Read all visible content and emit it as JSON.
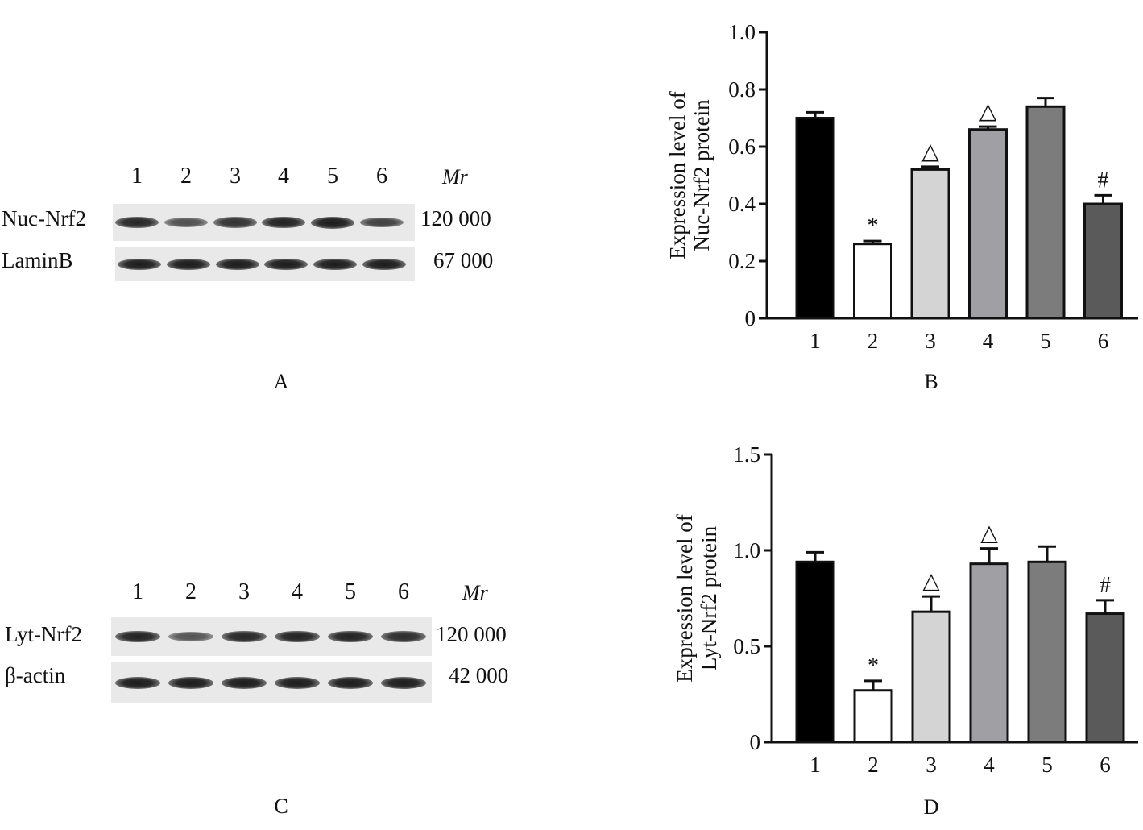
{
  "panels": {
    "A": {
      "letter": "A",
      "lanes": [
        "1",
        "2",
        "3",
        "4",
        "5",
        "6"
      ],
      "mr_label": "Mr",
      "rows": [
        {
          "label": "Nuc-Nrf2",
          "mw": "120 000",
          "intensities": [
            0.9,
            0.55,
            0.8,
            0.95,
            1.0,
            0.7
          ]
        },
        {
          "label": "LaminB",
          "mw": "67 000",
          "intensities": [
            1.0,
            1.0,
            1.0,
            1.0,
            1.0,
            1.0
          ]
        }
      ]
    },
    "C": {
      "letter": "C",
      "lanes": [
        "1",
        "2",
        "3",
        "4",
        "5",
        "6"
      ],
      "mr_label": "Mr",
      "rows": [
        {
          "label": "Lyt-Nrf2",
          "mw": "120 000",
          "intensities": [
            0.95,
            0.5,
            0.9,
            0.95,
            0.95,
            0.85
          ]
        },
        {
          "label": "β-actin",
          "mw": "42 000",
          "intensities": [
            1.0,
            1.0,
            1.0,
            1.0,
            1.0,
            1.0
          ]
        }
      ]
    },
    "B": {
      "letter": "B"
    },
    "D": {
      "letter": "D"
    }
  },
  "chart_data": [
    {
      "panel": "B",
      "type": "bar",
      "categories": [
        "1",
        "2",
        "3",
        "4",
        "5",
        "6"
      ],
      "values": [
        0.7,
        0.26,
        0.52,
        0.66,
        0.74,
        0.4
      ],
      "errors": [
        0.02,
        0.01,
        0.01,
        0.01,
        0.03,
        0.03
      ],
      "annotations": [
        "",
        "*",
        "△",
        "△",
        "",
        "#"
      ],
      "colors": [
        "#000000",
        "#ffffff",
        "#d4d4d4",
        "#a0a0a4",
        "#7c7c7c",
        "#5a5a5a"
      ],
      "ylabel_line1": "Expression level of",
      "ylabel_line2": "Nuc-Nrf2 protein",
      "xlabel": "",
      "ylim": [
        0,
        1.0
      ],
      "yticks": [
        "0",
        "0.2",
        "0.4",
        "0.6",
        "0.8",
        "1.0"
      ],
      "ytick_values": [
        0,
        0.2,
        0.4,
        0.6,
        0.8,
        1.0
      ]
    },
    {
      "panel": "D",
      "type": "bar",
      "categories": [
        "1",
        "2",
        "3",
        "4",
        "5",
        "6"
      ],
      "values": [
        0.94,
        0.27,
        0.68,
        0.93,
        0.94,
        0.67
      ],
      "errors": [
        0.05,
        0.05,
        0.08,
        0.08,
        0.08,
        0.07
      ],
      "annotations": [
        "",
        "*",
        "△",
        "△",
        "",
        "#"
      ],
      "colors": [
        "#000000",
        "#ffffff",
        "#d4d4d4",
        "#a0a0a4",
        "#7c7c7c",
        "#5a5a5a"
      ],
      "ylabel_line1": "Expression level of",
      "ylabel_line2": "Lyt-Nrf2 protein",
      "xlabel": "",
      "ylim": [
        0,
        1.5
      ],
      "yticks": [
        "0",
        "0.5",
        "1.0",
        "1.5"
      ],
      "ytick_values": [
        0,
        0.5,
        1.0,
        1.5
      ]
    }
  ]
}
